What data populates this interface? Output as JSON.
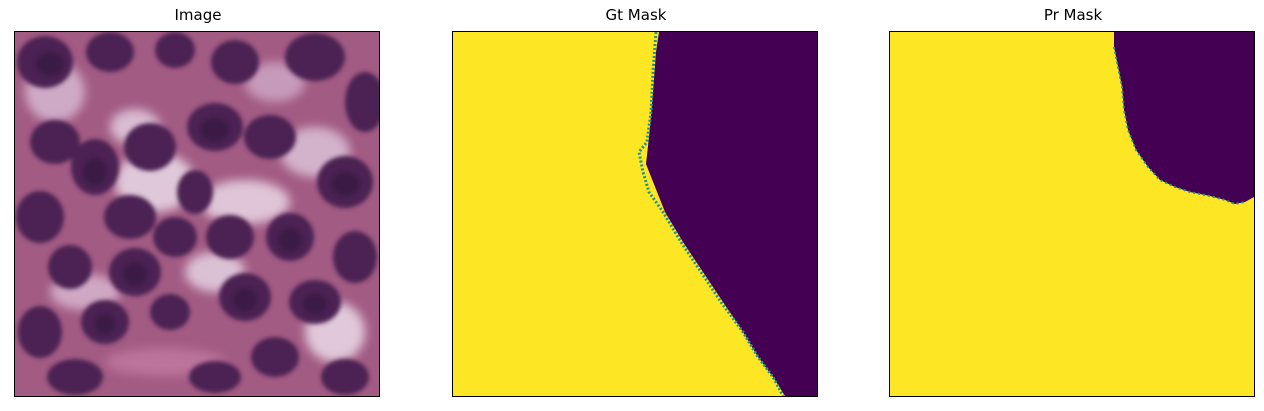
{
  "panels": [
    {
      "title": "Image",
      "kind": "histology-photo"
    },
    {
      "title": "Gt Mask",
      "kind": "binary-mask"
    },
    {
      "title": "Pr Mask",
      "kind": "binary-mask"
    }
  ],
  "colors": {
    "mask_foreground": "#fde725",
    "mask_background": "#440154",
    "mask_edge": "#21918c",
    "tissue_base": "#b06a8f",
    "nucleus": "#4a2450",
    "stroma": "#e7d3e2"
  }
}
